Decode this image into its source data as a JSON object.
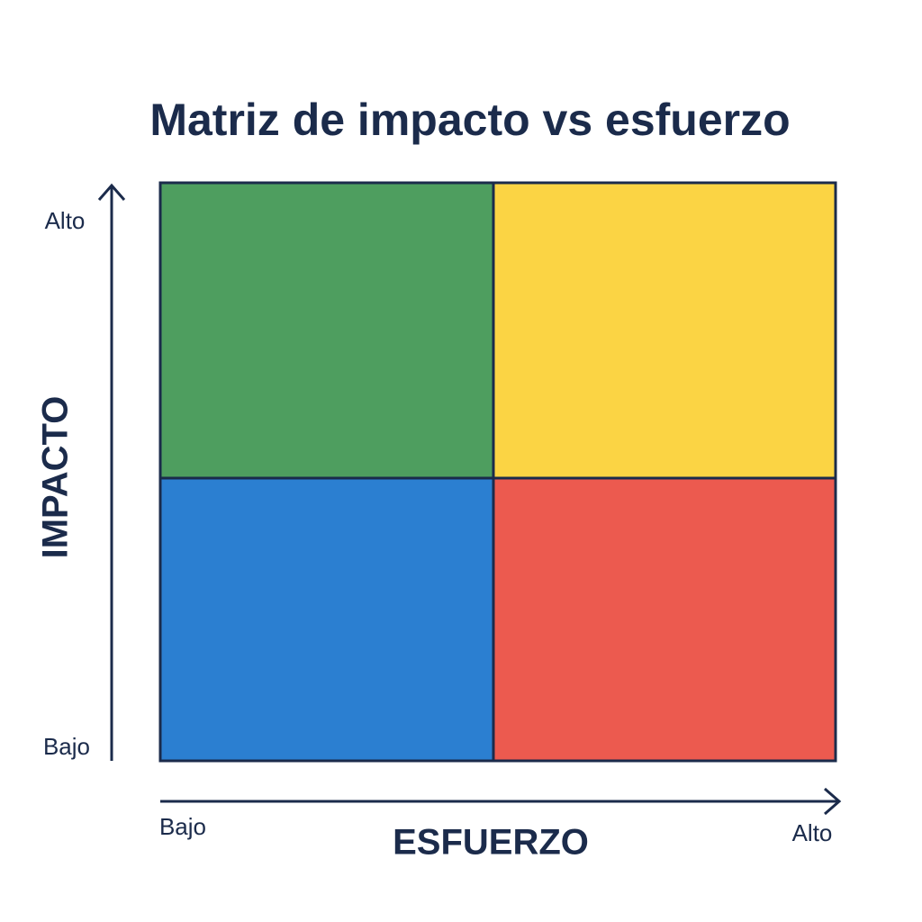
{
  "title": "Matriz de impacto vs esfuerzo",
  "y_axis": {
    "label": "IMPACTO",
    "high": "Alto",
    "low": "Bajo"
  },
  "x_axis": {
    "label": "ESFUERZO",
    "low": "Bajo",
    "high": "Alto"
  }
}
